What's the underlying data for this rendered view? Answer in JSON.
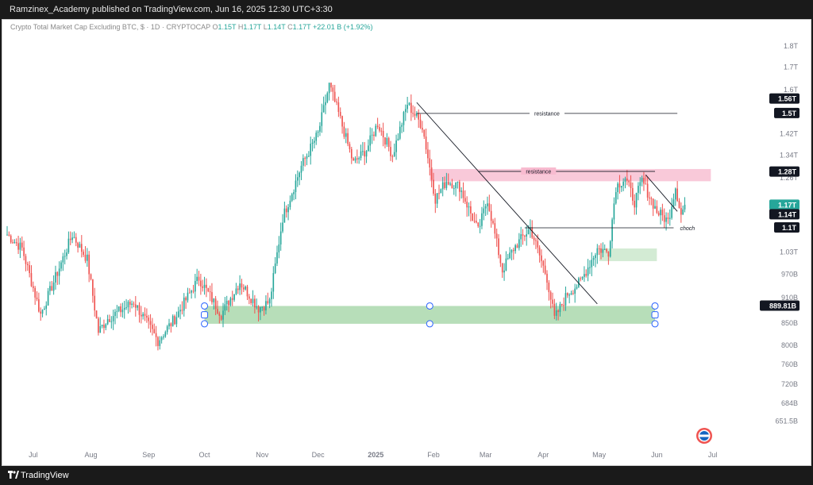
{
  "header": {
    "publisher_line": "Ramzinex_Academy published on TradingView.com, Jun 16, 2025 12:30 UTC+3:30"
  },
  "footer": {
    "brand": "TradingView"
  },
  "legend": {
    "symbol": "Crypto Total Market Cap Excluding BTC, $ · 1D · CRYPTOCAP",
    "open_label": "O",
    "open": "1.15T",
    "high_label": "H",
    "high": "1.17T",
    "low_label": "L",
    "low": "1.14T",
    "close_label": "C",
    "close": "1.17T",
    "change": "+22.01 B (+1.92%)"
  },
  "colors": {
    "up": "#26a69a",
    "down": "#ef5350",
    "support_zone": "#a5d6a7",
    "resistance_zone": "#f8bbd0",
    "demand_zone": "#c8e6c9",
    "price_tag": "#131722",
    "last_price_tag": "#26a69a"
  },
  "chart_data": {
    "type": "candlestick",
    "title": "Crypto Total Market Cap Excluding BTC, $ · 1D · CRYPTOCAP",
    "y_scale": "log",
    "ylim": [
      610,
      1900
    ],
    "xlim": [
      "2024-06-17",
      "2025-07-28"
    ],
    "y_tick_labels": [
      "1.8T",
      "1.7T",
      "1.6T",
      "1.5T",
      "1.42T",
      "1.34T",
      "1.26T",
      "1.1T",
      "1.03T",
      "970B",
      "910B",
      "850B",
      "800B",
      "760B",
      "720B",
      "684B",
      "651.5B"
    ],
    "y_tick_values": [
      1800,
      1700,
      1600,
      1500,
      1420,
      1340,
      1260,
      1100,
      1030,
      970,
      910,
      850,
      800,
      760,
      720,
      684,
      651.5
    ],
    "x_tick_labels": [
      "Jul",
      "Aug",
      "Sep",
      "Oct",
      "Nov",
      "Dec",
      "2025",
      "Feb",
      "Mar",
      "Apr",
      "May",
      "Jun",
      "Jul"
    ],
    "x_tick_dates": [
      "2024-07-01",
      "2024-08-01",
      "2024-09-01",
      "2024-10-01",
      "2024-11-01",
      "2024-12-01",
      "2025-01-01",
      "2025-02-01",
      "2025-03-01",
      "2025-04-01",
      "2025-05-01",
      "2025-06-01",
      "2025-07-01"
    ],
    "price_tags": [
      {
        "label": "1.56T",
        "value": 1560
      },
      {
        "label": "1.5T",
        "value": 1500
      },
      {
        "label": "1.28T",
        "value": 1280
      },
      {
        "label": "1.17T",
        "value": 1170,
        "current": true
      },
      {
        "label": "1.14T",
        "value": 1140
      },
      {
        "label": "1.1T",
        "value": 1100
      },
      {
        "label": "889.81B",
        "value": 889.81
      }
    ],
    "anchors": [
      [
        "2024-06-17",
        1080
      ],
      [
        "2024-06-25",
        1040
      ],
      [
        "2024-07-05",
        870
      ],
      [
        "2024-07-12",
        950
      ],
      [
        "2024-07-22",
        1080
      ],
      [
        "2024-07-30",
        1010
      ],
      [
        "2024-08-05",
        830
      ],
      [
        "2024-08-10",
        860
      ],
      [
        "2024-08-24",
        900
      ],
      [
        "2024-09-06",
        810
      ],
      [
        "2024-09-15",
        860
      ],
      [
        "2024-09-28",
        960
      ],
      [
        "2024-10-10",
        870
      ],
      [
        "2024-10-20",
        950
      ],
      [
        "2024-10-30",
        885
      ],
      [
        "2024-11-05",
        900
      ],
      [
        "2024-11-12",
        1130
      ],
      [
        "2024-11-22",
        1300
      ],
      [
        "2024-12-01",
        1420
      ],
      [
        "2024-12-07",
        1620
      ],
      [
        "2024-12-12",
        1500
      ],
      [
        "2024-12-20",
        1310
      ],
      [
        "2024-12-27",
        1360
      ],
      [
        "2025-01-02",
        1460
      ],
      [
        "2025-01-10",
        1340
      ],
      [
        "2025-01-18",
        1540
      ],
      [
        "2025-01-26",
        1450
      ],
      [
        "2025-02-02",
        1190
      ],
      [
        "2025-02-08",
        1250
      ],
      [
        "2025-02-15",
        1230
      ],
      [
        "2025-02-25",
        1090
      ],
      [
        "2025-03-02",
        1190
      ],
      [
        "2025-03-10",
        980
      ],
      [
        "2025-03-16",
        1040
      ],
      [
        "2025-03-25",
        1100
      ],
      [
        "2025-04-03",
        960
      ],
      [
        "2025-04-07",
        860
      ],
      [
        "2025-04-14",
        920
      ],
      [
        "2025-04-21",
        950
      ],
      [
        "2025-04-30",
        1040
      ],
      [
        "2025-05-06",
        1030
      ],
      [
        "2025-05-10",
        1230
      ],
      [
        "2025-05-15",
        1260
      ],
      [
        "2025-05-20",
        1180
      ],
      [
        "2025-05-24",
        1250
      ],
      [
        "2025-06-01",
        1150
      ],
      [
        "2025-06-07",
        1120
      ],
      [
        "2025-06-11",
        1230
      ],
      [
        "2025-06-14",
        1140
      ],
      [
        "2025-06-16",
        1170
      ]
    ],
    "drawings": [
      {
        "type": "horizontal_line",
        "label": "resistance",
        "value": 1500,
        "from": "2025-01-23",
        "to": "2025-06-12"
      },
      {
        "type": "zone",
        "label": "resistance",
        "from": "2025-01-30",
        "to": "2025-06-30",
        "low": 1248,
        "high": 1290
      },
      {
        "type": "horizontal_line",
        "label": "choch",
        "value": 1100,
        "from": "2025-03-22",
        "to": "2025-06-10"
      },
      {
        "type": "zone",
        "from": "2024-10-01",
        "to": "2025-05-31",
        "low": 848,
        "high": 890
      },
      {
        "type": "zone",
        "from": "2025-05-01",
        "to": "2025-06-01",
        "low": 1005,
        "high": 1040
      },
      {
        "type": "trend_line",
        "from": [
          "2025-01-23",
          1545
        ],
        "to": [
          "2025-04-30",
          895
        ]
      },
      {
        "type": "trend_line",
        "from": [
          "2025-05-26",
          1270
        ],
        "to": [
          "2025-06-12",
          1150
        ]
      }
    ]
  }
}
